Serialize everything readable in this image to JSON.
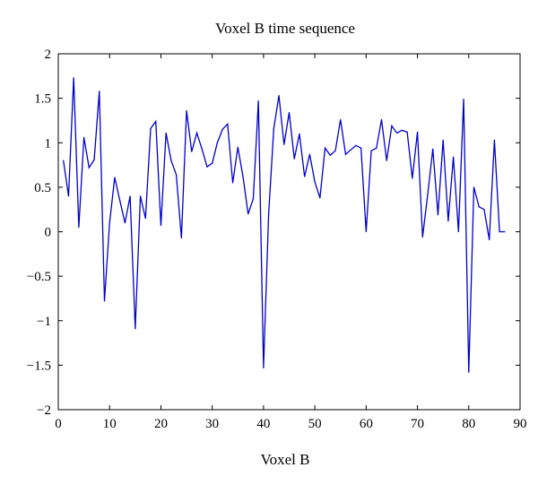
{
  "chart_data": {
    "type": "line",
    "title": "Voxel B time sequence",
    "xlabel": "Voxel B",
    "ylabel": "",
    "xlim": [
      0,
      90
    ],
    "ylim": [
      -2,
      2
    ],
    "xticks": [
      0,
      10,
      20,
      30,
      40,
      50,
      60,
      70,
      80,
      90
    ],
    "yticks": [
      2,
      1.5,
      1,
      0.5,
      0,
      -0.5,
      -1,
      -1.5,
      -2
    ],
    "xtick_labels": [
      "0",
      "10",
      "20",
      "30",
      "40",
      "50",
      "60",
      "70",
      "80",
      "90"
    ],
    "ytick_labels": [
      "2",
      "1.5",
      "1",
      "0.5",
      "0",
      "−0.5",
      "−1",
      "−1.5",
      "−2"
    ],
    "grid": false,
    "series": [
      {
        "color": "#0000cc",
        "x": [
          1,
          2,
          3,
          4,
          5,
          6,
          7,
          8,
          9,
          10,
          11,
          12,
          13,
          14,
          15,
          16,
          17,
          18,
          19,
          20,
          21,
          22,
          23,
          24,
          25,
          26,
          27,
          28,
          29,
          30,
          31,
          32,
          33,
          34,
          35,
          36,
          37,
          38,
          39,
          40,
          41,
          42,
          43,
          44,
          45,
          46,
          47,
          48,
          49,
          50,
          51,
          52,
          53,
          54,
          55,
          56,
          57,
          58,
          59,
          60,
          61,
          62,
          63,
          64,
          65,
          66,
          67,
          68,
          69,
          70,
          71,
          72,
          73,
          74,
          75,
          76,
          77,
          78,
          79,
          80,
          81,
          82,
          83,
          84,
          85,
          86,
          87
        ],
        "y": [
          0.8,
          0.4,
          1.73,
          0.05,
          1.06,
          0.72,
          0.81,
          1.58,
          -0.78,
          0.1,
          0.61,
          0.35,
          0.1,
          0.4,
          -1.09,
          0.4,
          0.15,
          1.16,
          1.24,
          0.07,
          1.11,
          0.8,
          0.64,
          -0.07,
          1.36,
          0.9,
          1.11,
          0.93,
          0.73,
          0.77,
          1.0,
          1.15,
          1.21,
          0.55,
          0.95,
          0.62,
          0.2,
          0.37,
          1.47,
          -1.53,
          0.2,
          1.16,
          1.53,
          0.98,
          1.34,
          0.82,
          1.1,
          0.62,
          0.87,
          0.56,
          0.38,
          0.94,
          0.86,
          0.91,
          1.26,
          0.87,
          0.92,
          0.97,
          0.94,
          0.0,
          0.91,
          0.94,
          1.26,
          0.8,
          1.19,
          1.11,
          1.14,
          1.12,
          0.6,
          1.12,
          -0.06,
          0.42,
          0.93,
          0.19,
          1.03,
          0.12,
          0.84,
          0.0,
          1.49,
          -1.58,
          0.5,
          0.28,
          0.25,
          -0.09,
          1.03,
          0.0,
          0.0
        ]
      }
    ]
  }
}
